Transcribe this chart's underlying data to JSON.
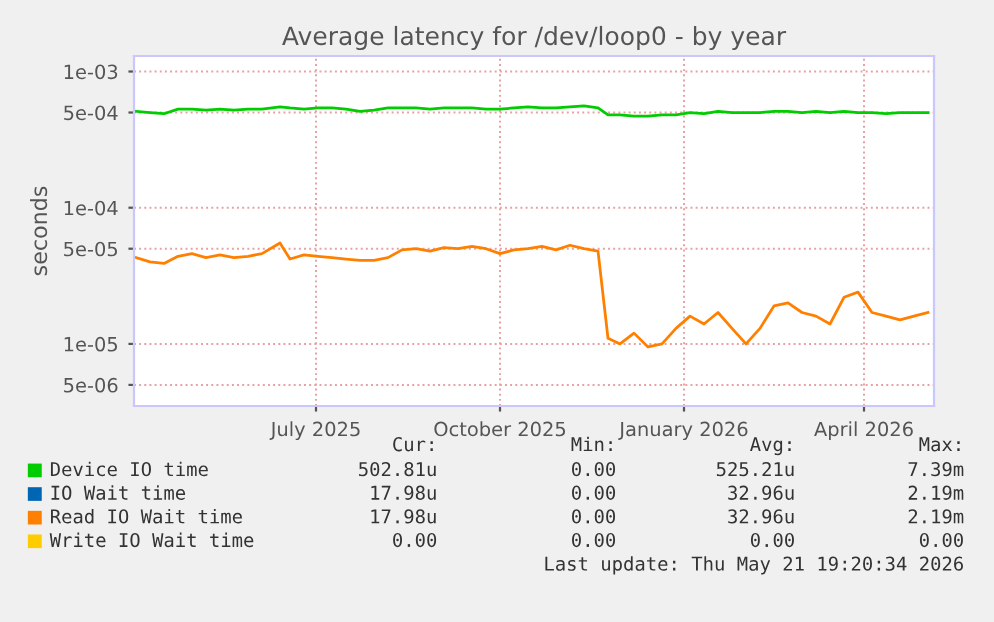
{
  "chart_data": {
    "type": "line",
    "title": "Average latency for /dev/loop0 - by year",
    "ylabel": "seconds",
    "log": true,
    "grid": true,
    "legend": "bottom",
    "x": [
      "2025-04-17",
      "2025-04-24",
      "2025-05-01",
      "2025-05-08",
      "2025-05-15",
      "2025-05-22",
      "2025-05-29",
      "2025-06-05",
      "2025-06-12",
      "2025-06-19",
      "2025-06-28",
      "2025-07-03",
      "2025-07-10",
      "2025-07-17",
      "2025-07-24",
      "2025-07-31",
      "2025-08-07",
      "2025-08-14",
      "2025-08-21",
      "2025-08-28",
      "2025-09-04",
      "2025-09-11",
      "2025-09-18",
      "2025-09-25",
      "2025-10-02",
      "2025-10-09",
      "2025-10-16",
      "2025-10-23",
      "2025-10-30",
      "2025-11-06",
      "2025-11-13",
      "2025-11-20",
      "2025-11-27",
      "2025-12-04",
      "2025-12-09",
      "2025-12-15",
      "2025-12-22",
      "2025-12-29",
      "2026-01-05",
      "2026-01-12",
      "2026-01-19",
      "2026-01-26",
      "2026-02-02",
      "2026-02-09",
      "2026-02-16",
      "2026-02-23",
      "2026-03-02",
      "2026-03-09",
      "2026-03-16",
      "2026-03-23",
      "2026-03-30",
      "2026-04-06",
      "2026-04-13",
      "2026-04-20",
      "2026-04-27",
      "2026-05-04",
      "2026-05-11",
      "2026-05-18"
    ],
    "series": [
      {
        "name": "Device IO time",
        "color": "#00cc00",
        "values": [
          0.00051,
          0.0005,
          0.00049,
          0.00053,
          0.00053,
          0.00052,
          0.00053,
          0.00052,
          0.00053,
          0.00053,
          0.00055,
          0.00054,
          0.00053,
          0.00054,
          0.00054,
          0.00053,
          0.00051,
          0.00052,
          0.00054,
          0.00054,
          0.00054,
          0.00053,
          0.00054,
          0.00054,
          0.00054,
          0.00053,
          0.00053,
          0.00054,
          0.00055,
          0.00054,
          0.00054,
          0.00055,
          0.00056,
          0.00054,
          0.00048,
          0.00048,
          0.00047,
          0.00047,
          0.00048,
          0.00048,
          0.0005,
          0.00049,
          0.00051,
          0.0005,
          0.0005,
          0.0005,
          0.00051,
          0.00051,
          0.0005,
          0.00051,
          0.0005,
          0.00051,
          0.0005,
          0.0005,
          0.00049,
          0.0005,
          0.0005,
          0.0005
        ]
      },
      {
        "name": "IO Wait time",
        "color": "#0066b3",
        "values": [
          null,
          null,
          null,
          null,
          null,
          null,
          null,
          null,
          null,
          null,
          null,
          null,
          null,
          null,
          null,
          null,
          null,
          null,
          null,
          null,
          null,
          null,
          null,
          null,
          null,
          null,
          null,
          null,
          null,
          null,
          null,
          null,
          null,
          null,
          null,
          null,
          null,
          null,
          null,
          null,
          null,
          null,
          null,
          null,
          null,
          null,
          null,
          null,
          null,
          null,
          null,
          null,
          null,
          null,
          null,
          null,
          null,
          null
        ]
      },
      {
        "name": "Read IO Wait time",
        "color": "#ff8000",
        "values": [
          4.3e-05,
          4e-05,
          3.9e-05,
          4.4e-05,
          4.6e-05,
          4.3e-05,
          4.5e-05,
          4.3e-05,
          4.4e-05,
          4.6e-05,
          5.5e-05,
          4.2e-05,
          4.5e-05,
          4.4e-05,
          4.3e-05,
          4.2e-05,
          4.1e-05,
          4.1e-05,
          4.3e-05,
          4.9e-05,
          5e-05,
          4.8e-05,
          5.1e-05,
          5e-05,
          5.2e-05,
          5e-05,
          4.6e-05,
          4.9e-05,
          5e-05,
          5.2e-05,
          4.9e-05,
          5.3e-05,
          5e-05,
          4.8e-05,
          1.1e-05,
          1e-05,
          1.2e-05,
          9.5e-06,
          1e-05,
          1.3e-05,
          1.6e-05,
          1.4e-05,
          1.7e-05,
          1.3e-05,
          1e-05,
          1.3e-05,
          1.9e-05,
          2e-05,
          1.7e-05,
          1.6e-05,
          1.4e-05,
          2.2e-05,
          2.4e-05,
          1.7e-05,
          1.6e-05,
          1.5e-05,
          1.6e-05,
          1.7e-05
        ]
      },
      {
        "name": "Write IO Wait time",
        "color": "#ffcc00",
        "values": [
          null,
          null,
          null,
          null,
          null,
          null,
          null,
          null,
          null,
          null,
          null,
          null,
          null,
          null,
          null,
          null,
          null,
          null,
          null,
          null,
          null,
          null,
          null,
          null,
          null,
          null,
          null,
          null,
          null,
          null,
          null,
          null,
          null,
          null,
          null,
          null,
          null,
          null,
          null,
          null,
          null,
          null,
          null,
          null,
          null,
          null,
          null,
          null,
          null,
          null,
          null,
          null,
          null,
          null,
          null,
          null,
          null,
          null
        ]
      }
    ],
    "xlim": [
      "2025-04-16",
      "2026-05-21"
    ],
    "xticks": [
      {
        "value": "2025-07-16",
        "label": "July 2025"
      },
      {
        "value": "2025-10-16",
        "label": "October 2025"
      },
      {
        "value": "2026-01-16",
        "label": "January 2026"
      },
      {
        "value": "2026-04-16",
        "label": "April 2026"
      }
    ],
    "ylim": [
      3.5e-06,
      0.0013
    ],
    "yticks": [
      {
        "value": 5e-06,
        "label": "5e-06"
      },
      {
        "value": 1e-05,
        "label": "1e-05"
      },
      {
        "value": 5e-05,
        "label": "5e-05"
      },
      {
        "value": 0.0001,
        "label": "1e-04"
      },
      {
        "value": 0.0005,
        "label": "5e-04"
      },
      {
        "value": 0.001,
        "label": "1e-03"
      }
    ],
    "annotations": [
      "Cur:",
      "Min:",
      "Avg:",
      "Max:",
      "502.81u",
      "0.00",
      "525.21u",
      "7.39m",
      "17.98u",
      "0.00",
      "32.96u",
      "2.19m",
      "17.98u",
      "0.00",
      "32.96u",
      "2.19m",
      "0.00",
      "0.00",
      "0.00",
      "0.00",
      "Last update: Thu May 21 19:20:34 2026"
    ]
  }
}
